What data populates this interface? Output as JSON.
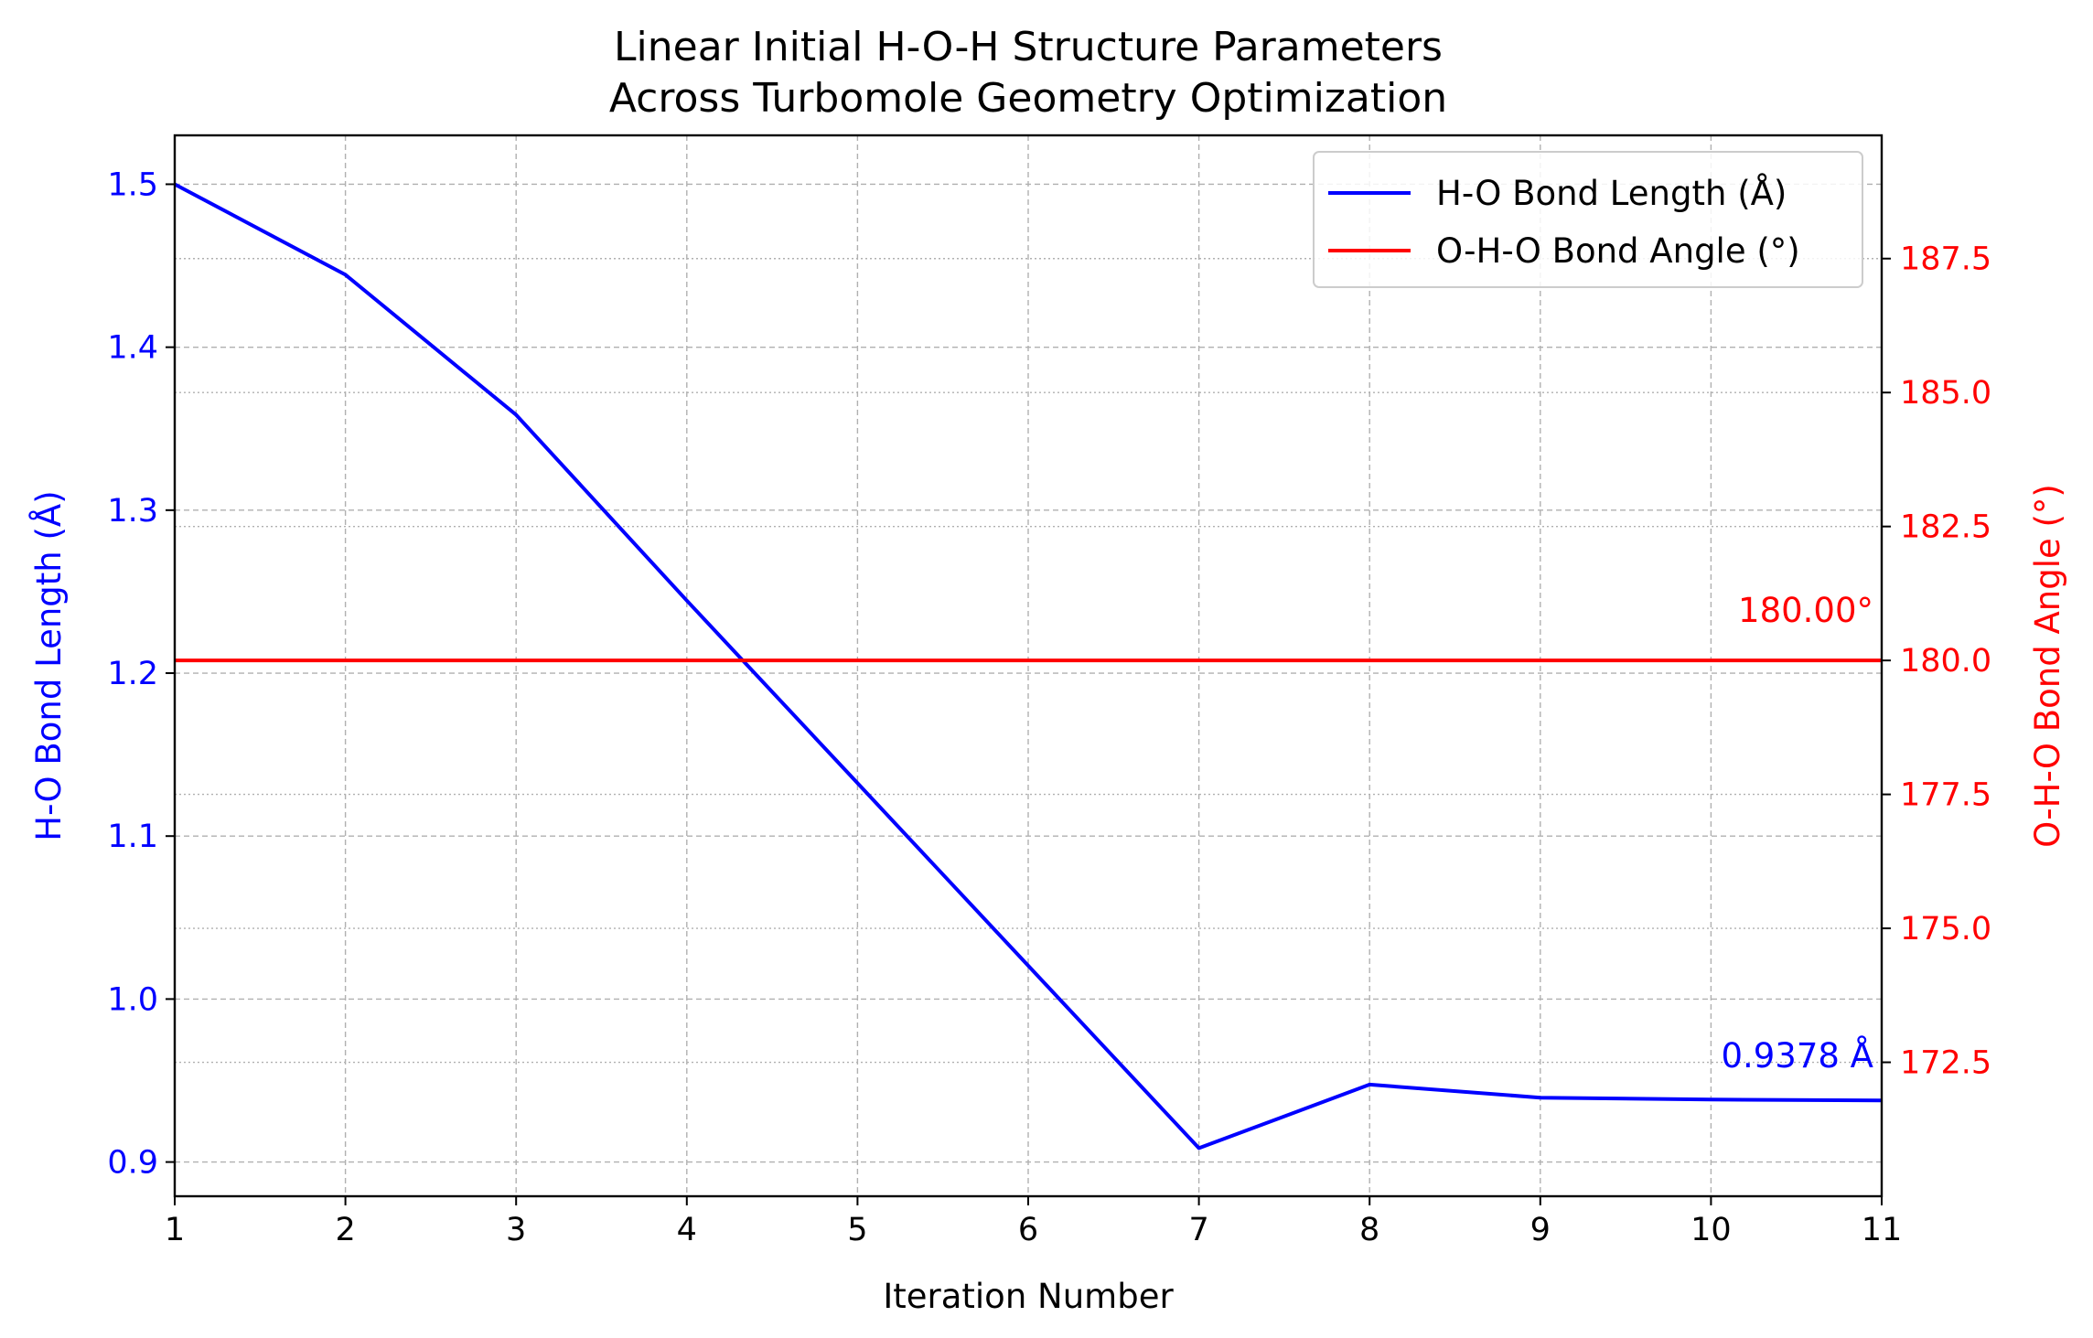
{
  "chart_data": {
    "type": "line",
    "title_line1": "Linear Initial H-O-H Structure Parameters",
    "title_line2": "Across Turbomole Geometry Optimization",
    "xlabel": "Iteration Number",
    "ylabel_left": "H-O Bond Length (Å)",
    "ylabel_right": "O-H-O Bond Angle (°)",
    "x": [
      1,
      2,
      3,
      4,
      5,
      6,
      7,
      8,
      9,
      10,
      11
    ],
    "xlim": [
      1,
      11
    ],
    "ylim_left": [
      0.879,
      1.53
    ],
    "ylim_right": [
      170.0,
      189.8
    ],
    "x_ticks": [
      "1",
      "2",
      "3",
      "4",
      "5",
      "6",
      "7",
      "8",
      "9",
      "10",
      "11"
    ],
    "y_left_ticks": [
      "0.9",
      "1.0",
      "1.1",
      "1.2",
      "1.3",
      "1.4",
      "1.5"
    ],
    "y_right_ticks": [
      "172.5",
      "175.0",
      "177.5",
      "180.0",
      "182.5",
      "185.0",
      "187.5"
    ],
    "grid": true,
    "legend_position": "top-right",
    "series": [
      {
        "name": "H-O Bond Length (Å)",
        "axis": "left",
        "color": "#0000ff",
        "values": [
          1.5,
          1.4445,
          1.3585,
          1.2445,
          1.1325,
          1.0205,
          0.9085,
          0.9475,
          0.9395,
          0.9383,
          0.9378
        ]
      },
      {
        "name": "O-H-O Bond Angle (°)",
        "axis": "right",
        "color": "#ff0000",
        "values": [
          180.0,
          180.0,
          180.0,
          180.0,
          180.0,
          180.0,
          180.0,
          180.0,
          180.0,
          180.0,
          180.0
        ]
      }
    ],
    "annotations": [
      {
        "text": "0.9378 Å",
        "color": "#0000ff",
        "series": 0
      },
      {
        "text": "180.00°",
        "color": "#ff0000",
        "series": 1
      }
    ]
  }
}
